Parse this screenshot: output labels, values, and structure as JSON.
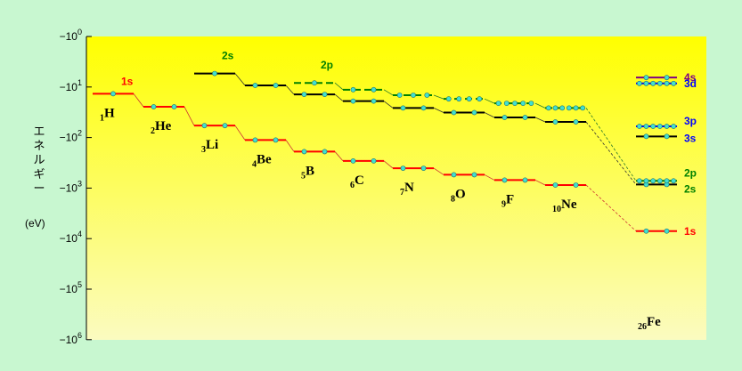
{
  "chart_data": {
    "type": "diagram",
    "ylabel": "エネルギー",
    "yunit": "(eV)",
    "yscale": "log",
    "y_ticks": [
      {
        "base": "−10",
        "exp": "0"
      },
      {
        "base": "−10",
        "exp": "1"
      },
      {
        "base": "−10",
        "exp": "2"
      },
      {
        "base": "−10",
        "exp": "3"
      },
      {
        "base": "−10",
        "exp": "4"
      },
      {
        "base": "−10",
        "exp": "5"
      },
      {
        "base": "−10",
        "exp": "6"
      }
    ],
    "elements": [
      {
        "z": "1",
        "sym": "H",
        "levels": {
          "1s": -13.6
        }
      },
      {
        "z": "2",
        "sym": "He",
        "levels": {
          "1s": -24.6
        }
      },
      {
        "z": "3",
        "sym": "Li",
        "levels": {
          "1s": -58,
          "2s": -5.4
        }
      },
      {
        "z": "4",
        "sym": "Be",
        "levels": {
          "1s": -112,
          "2s": -9.3
        }
      },
      {
        "z": "5",
        "sym": "B",
        "levels": {
          "1s": -190,
          "2s": -14,
          "2p": -8.3
        }
      },
      {
        "z": "6",
        "sym": "C",
        "levels": {
          "1s": -290,
          "2s": -19,
          "2p": -11.3
        }
      },
      {
        "z": "7",
        "sym": "N",
        "levels": {
          "1s": -405,
          "2s": -26,
          "2p": -14.5
        }
      },
      {
        "z": "8",
        "sym": "O",
        "levels": {
          "1s": -545,
          "2s": -32,
          "2p": -17.2
        }
      },
      {
        "z": "9",
        "sym": "F",
        "levels": {
          "1s": -695,
          "2s": -40,
          "2p": -21
        }
      },
      {
        "z": "10",
        "sym": "Ne",
        "levels": {
          "1s": -870,
          "2s": -49,
          "2p": -26
        }
      },
      {
        "z": "26",
        "sym": "Fe",
        "levels": {
          "1s": -7100,
          "2s": -850,
          "2p": -720,
          "3s": -95,
          "3p": -60,
          "3d": -8.5,
          "4s": -6.5
        }
      }
    ],
    "orbital_labels": [
      {
        "text": "1s",
        "color": "#ff0000"
      },
      {
        "text": "2s",
        "color": "#008000"
      },
      {
        "text": "2p",
        "color": "#008000"
      },
      {
        "text": "4s",
        "color": "#800080"
      },
      {
        "text": "3d",
        "color": "#0000ff"
      },
      {
        "text": "3p",
        "color": "#0000ff"
      },
      {
        "text": "3s",
        "color": "#0000ff"
      },
      {
        "text": "2p",
        "color": "#008000"
      },
      {
        "text": "2s",
        "color": "#008000"
      },
      {
        "text": "1s",
        "color": "#ff0000"
      }
    ],
    "colors": {
      "1s": "#ff0000",
      "2s": "#000000",
      "2p": "#008000",
      "3s": "#000000",
      "3p": "#0000ff",
      "3d": "#0000ff",
      "4s": "#800080",
      "electron": "#40e0d0",
      "background_top": "#ffff00",
      "background_bottom": "#f7f7b0",
      "page": "#c8f7d0"
    }
  }
}
